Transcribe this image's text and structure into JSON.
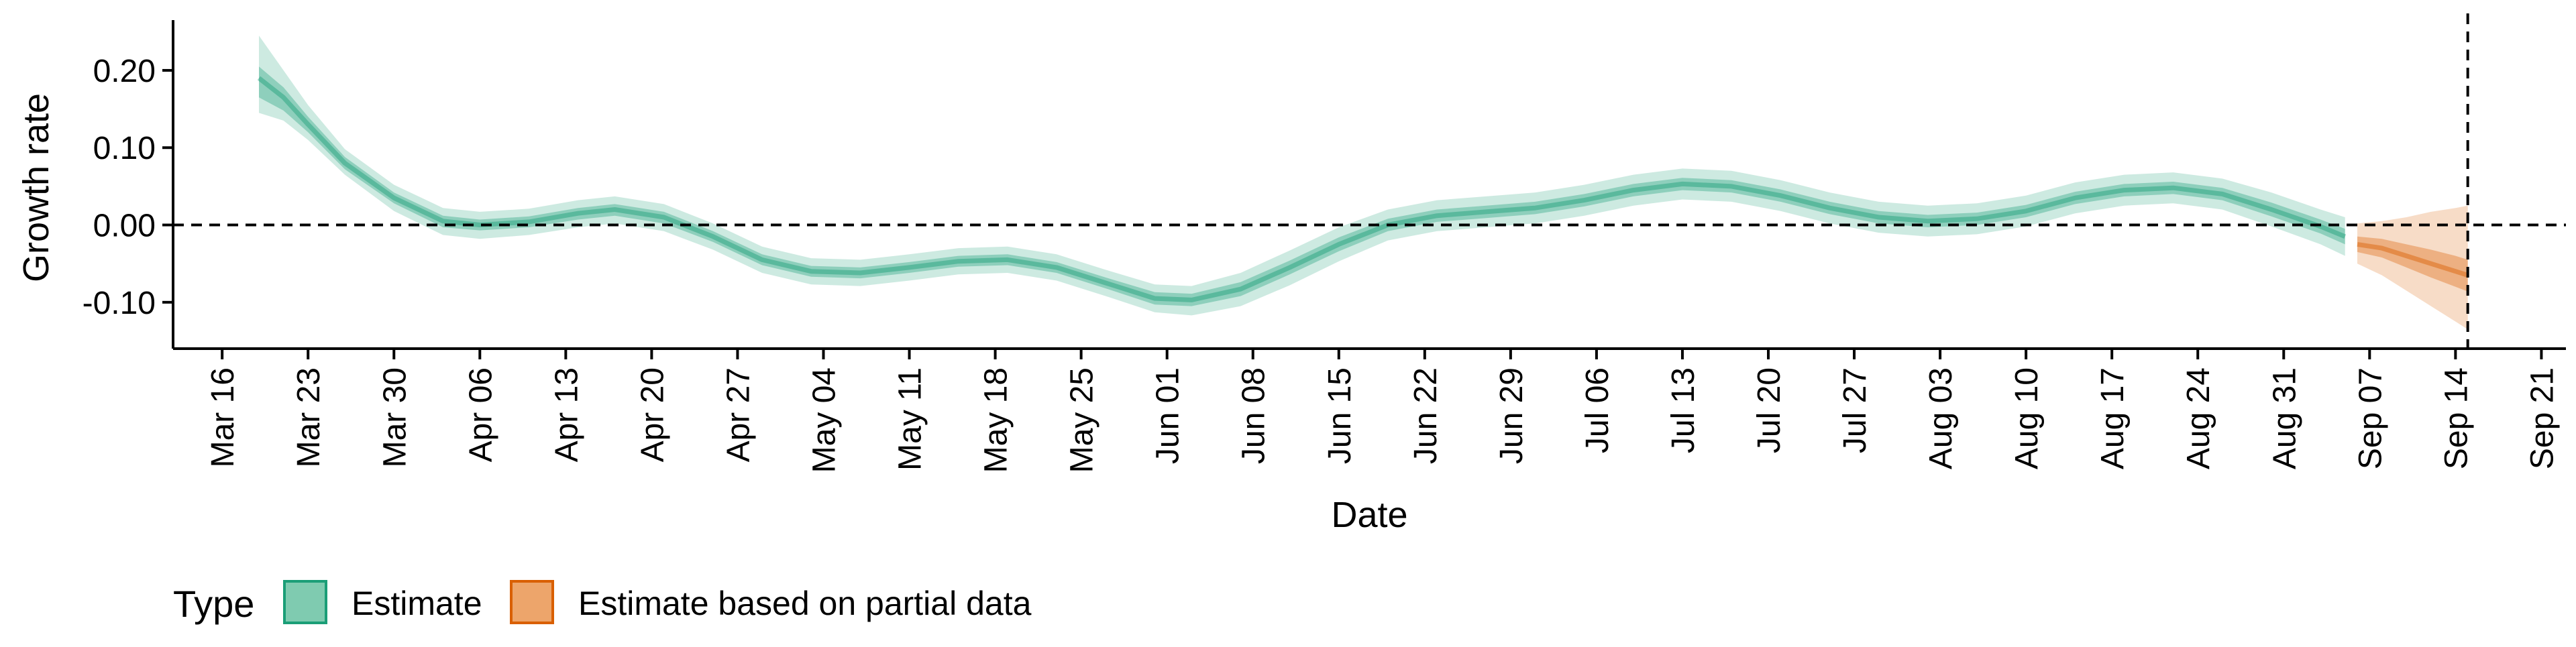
{
  "chart_data": {
    "type": "area",
    "ylabel": "Growth rate",
    "xlabel": "Date",
    "ylim": [
      -0.16,
      0.265
    ],
    "xlim": [
      "2020-03-12",
      "2020-09-23"
    ],
    "yticks": [
      0.2,
      0.1,
      0.0,
      -0.1
    ],
    "ytick_labels": [
      "0.20",
      "0.10",
      "0.00",
      "-0.10"
    ],
    "xticks": [
      "2020-03-16",
      "2020-03-23",
      "2020-03-30",
      "2020-04-06",
      "2020-04-13",
      "2020-04-20",
      "2020-04-27",
      "2020-05-04",
      "2020-05-11",
      "2020-05-18",
      "2020-05-25",
      "2020-06-01",
      "2020-06-08",
      "2020-06-15",
      "2020-06-22",
      "2020-06-29",
      "2020-07-06",
      "2020-07-13",
      "2020-07-20",
      "2020-07-27",
      "2020-08-03",
      "2020-08-10",
      "2020-08-17",
      "2020-08-24",
      "2020-08-31",
      "2020-09-07",
      "2020-09-14",
      "2020-09-21"
    ],
    "xtick_labels": [
      "Mar 16",
      "Mar 23",
      "Mar 30",
      "Apr 06",
      "Apr 13",
      "Apr 20",
      "Apr 27",
      "May 04",
      "May 11",
      "May 18",
      "May 25",
      "Jun 01",
      "Jun 08",
      "Jun 15",
      "Jun 22",
      "Jun 29",
      "Jul 06",
      "Jul 13",
      "Jul 20",
      "Jul 27",
      "Aug 03",
      "Aug 10",
      "Aug 17",
      "Aug 24",
      "Aug 31",
      "Sep 07",
      "Sep 14",
      "Sep 21"
    ],
    "reference_lines": {
      "horizontal_y": 0.0,
      "vertical_x": "2020-09-15"
    },
    "grid": false,
    "legend": {
      "title": "Type",
      "position": "bottom-left",
      "entries": [
        {
          "label": "Estimate",
          "fill": "#7fcbb0",
          "stroke": "#1b9e77"
        },
        {
          "label": "Estimate based on partial data",
          "fill": "#eda56b",
          "stroke": "#d95f02"
        }
      ]
    },
    "series": [
      {
        "type_key": "estimate",
        "color": "#1b9e77",
        "points": [
          {
            "x": "2020-03-19",
            "median": 0.19,
            "lo50": 0.165,
            "hi50": 0.205,
            "lo90": 0.145,
            "hi90": 0.245
          },
          {
            "x": "2020-03-21",
            "median": 0.165,
            "lo50": 0.148,
            "hi50": 0.178,
            "lo90": 0.135,
            "hi90": 0.2
          },
          {
            "x": "2020-03-23",
            "median": 0.13,
            "lo50": 0.12,
            "hi50": 0.14,
            "lo90": 0.11,
            "hi90": 0.155
          },
          {
            "x": "2020-03-26",
            "median": 0.08,
            "lo50": 0.072,
            "hi50": 0.088,
            "lo90": 0.065,
            "hi90": 0.098
          },
          {
            "x": "2020-03-30",
            "median": 0.035,
            "lo50": 0.028,
            "hi50": 0.042,
            "lo90": 0.018,
            "hi90": 0.052
          },
          {
            "x": "2020-04-03",
            "median": 0.005,
            "lo50": -0.003,
            "hi50": 0.012,
            "lo90": -0.013,
            "hi90": 0.022
          },
          {
            "x": "2020-04-06",
            "median": 0.0,
            "lo50": -0.007,
            "hi50": 0.007,
            "lo90": -0.018,
            "hi90": 0.017
          },
          {
            "x": "2020-04-10",
            "median": 0.004,
            "lo50": -0.003,
            "hi50": 0.011,
            "lo90": -0.013,
            "hi90": 0.021
          },
          {
            "x": "2020-04-14",
            "median": 0.015,
            "lo50": 0.007,
            "hi50": 0.022,
            "lo90": -0.003,
            "hi90": 0.032
          },
          {
            "x": "2020-04-17",
            "median": 0.02,
            "lo50": 0.012,
            "hi50": 0.027,
            "lo90": 0.002,
            "hi90": 0.037
          },
          {
            "x": "2020-04-21",
            "median": 0.01,
            "lo50": 0.002,
            "hi50": 0.017,
            "lo90": -0.008,
            "hi90": 0.027
          },
          {
            "x": "2020-04-25",
            "median": -0.015,
            "lo50": -0.022,
            "hi50": -0.008,
            "lo90": -0.032,
            "hi90": 0.002
          },
          {
            "x": "2020-04-29",
            "median": -0.045,
            "lo50": -0.052,
            "hi50": -0.038,
            "lo90": -0.062,
            "hi90": -0.028
          },
          {
            "x": "2020-05-03",
            "median": -0.06,
            "lo50": -0.067,
            "hi50": -0.053,
            "lo90": -0.077,
            "hi90": -0.043
          },
          {
            "x": "2020-05-07",
            "median": -0.062,
            "lo50": -0.069,
            "hi50": -0.055,
            "lo90": -0.079,
            "hi90": -0.045
          },
          {
            "x": "2020-05-11",
            "median": -0.055,
            "lo50": -0.062,
            "hi50": -0.048,
            "lo90": -0.072,
            "hi90": -0.038
          },
          {
            "x": "2020-05-15",
            "median": -0.047,
            "lo50": -0.054,
            "hi50": -0.04,
            "lo90": -0.064,
            "hi90": -0.03
          },
          {
            "x": "2020-05-19",
            "median": -0.045,
            "lo50": -0.052,
            "hi50": -0.038,
            "lo90": -0.062,
            "hi90": -0.028
          },
          {
            "x": "2020-05-23",
            "median": -0.055,
            "lo50": -0.062,
            "hi50": -0.048,
            "lo90": -0.072,
            "hi90": -0.038
          },
          {
            "x": "2020-05-27",
            "median": -0.075,
            "lo50": -0.082,
            "hi50": -0.068,
            "lo90": -0.092,
            "hi90": -0.058
          },
          {
            "x": "2020-05-31",
            "median": -0.095,
            "lo50": -0.103,
            "hi50": -0.087,
            "lo90": -0.113,
            "hi90": -0.077
          },
          {
            "x": "2020-06-03",
            "median": -0.097,
            "lo50": -0.105,
            "hi50": -0.089,
            "lo90": -0.117,
            "hi90": -0.079
          },
          {
            "x": "2020-06-07",
            "median": -0.083,
            "lo50": -0.092,
            "hi50": -0.074,
            "lo90": -0.105,
            "hi90": -0.062
          },
          {
            "x": "2020-06-11",
            "median": -0.055,
            "lo50": -0.064,
            "hi50": -0.046,
            "lo90": -0.078,
            "hi90": -0.033
          },
          {
            "x": "2020-06-15",
            "median": -0.025,
            "lo50": -0.034,
            "hi50": -0.016,
            "lo90": -0.047,
            "hi90": -0.003
          },
          {
            "x": "2020-06-19",
            "median": 0.0,
            "lo50": -0.008,
            "hi50": 0.008,
            "lo90": -0.02,
            "hi90": 0.02
          },
          {
            "x": "2020-06-23",
            "median": 0.012,
            "lo50": 0.004,
            "hi50": 0.02,
            "lo90": -0.008,
            "hi90": 0.032
          },
          {
            "x": "2020-06-27",
            "median": 0.017,
            "lo50": 0.009,
            "hi50": 0.025,
            "lo90": -0.003,
            "hi90": 0.037
          },
          {
            "x": "2020-07-01",
            "median": 0.022,
            "lo50": 0.014,
            "hi50": 0.03,
            "lo90": 0.002,
            "hi90": 0.042
          },
          {
            "x": "2020-07-05",
            "median": 0.032,
            "lo50": 0.024,
            "hi50": 0.04,
            "lo90": 0.012,
            "hi90": 0.052
          },
          {
            "x": "2020-07-09",
            "median": 0.045,
            "lo50": 0.037,
            "hi50": 0.053,
            "lo90": 0.025,
            "hi90": 0.065
          },
          {
            "x": "2020-07-13",
            "median": 0.053,
            "lo50": 0.045,
            "hi50": 0.061,
            "lo90": 0.033,
            "hi90": 0.073
          },
          {
            "x": "2020-07-17",
            "median": 0.05,
            "lo50": 0.042,
            "hi50": 0.058,
            "lo90": 0.03,
            "hi90": 0.07
          },
          {
            "x": "2020-07-21",
            "median": 0.038,
            "lo50": 0.03,
            "hi50": 0.046,
            "lo90": 0.018,
            "hi90": 0.058
          },
          {
            "x": "2020-07-25",
            "median": 0.022,
            "lo50": 0.014,
            "hi50": 0.03,
            "lo90": 0.002,
            "hi90": 0.042
          },
          {
            "x": "2020-07-29",
            "median": 0.01,
            "lo50": 0.002,
            "hi50": 0.018,
            "lo90": -0.01,
            "hi90": 0.03
          },
          {
            "x": "2020-08-02",
            "median": 0.005,
            "lo50": -0.003,
            "hi50": 0.013,
            "lo90": -0.015,
            "hi90": 0.025
          },
          {
            "x": "2020-08-06",
            "median": 0.008,
            "lo50": 0.0,
            "hi50": 0.016,
            "lo90": -0.012,
            "hi90": 0.028
          },
          {
            "x": "2020-08-10",
            "median": 0.018,
            "lo50": 0.01,
            "hi50": 0.026,
            "lo90": -0.002,
            "hi90": 0.038
          },
          {
            "x": "2020-08-14",
            "median": 0.035,
            "lo50": 0.027,
            "hi50": 0.043,
            "lo90": 0.015,
            "hi90": 0.055
          },
          {
            "x": "2020-08-18",
            "median": 0.045,
            "lo50": 0.037,
            "hi50": 0.053,
            "lo90": 0.025,
            "hi90": 0.065
          },
          {
            "x": "2020-08-22",
            "median": 0.048,
            "lo50": 0.04,
            "hi50": 0.056,
            "lo90": 0.028,
            "hi90": 0.068
          },
          {
            "x": "2020-08-26",
            "median": 0.04,
            "lo50": 0.032,
            "hi50": 0.048,
            "lo90": 0.02,
            "hi90": 0.06
          },
          {
            "x": "2020-08-30",
            "median": 0.02,
            "lo50": 0.011,
            "hi50": 0.029,
            "lo90": -0.002,
            "hi90": 0.042
          },
          {
            "x": "2020-09-03",
            "median": -0.002,
            "lo50": -0.011,
            "hi50": 0.007,
            "lo90": -0.025,
            "hi90": 0.02
          },
          {
            "x": "2020-09-05",
            "median": -0.015,
            "lo50": -0.025,
            "hi50": -0.005,
            "lo90": -0.04,
            "hi90": 0.01
          }
        ]
      },
      {
        "type_key": "partial",
        "color": "#d95f02",
        "points": [
          {
            "x": "2020-09-06",
            "median": -0.025,
            "lo50": -0.035,
            "hi50": -0.015,
            "lo90": -0.05,
            "hi90": 0.002
          },
          {
            "x": "2020-09-08",
            "median": -0.03,
            "lo50": -0.042,
            "hi50": -0.018,
            "lo90": -0.065,
            "hi90": 0.005
          },
          {
            "x": "2020-09-10",
            "median": -0.04,
            "lo50": -0.055,
            "hi50": -0.025,
            "lo90": -0.085,
            "hi90": 0.01
          },
          {
            "x": "2020-09-12",
            "median": -0.05,
            "lo50": -0.068,
            "hi50": -0.032,
            "lo90": -0.105,
            "hi90": 0.017
          },
          {
            "x": "2020-09-14",
            "median": -0.06,
            "lo50": -0.08,
            "hi50": -0.04,
            "lo90": -0.125,
            "hi90": 0.022
          },
          {
            "x": "2020-09-15",
            "median": -0.065,
            "lo50": -0.086,
            "hi50": -0.045,
            "lo90": -0.135,
            "hi90": 0.025
          }
        ]
      }
    ]
  }
}
